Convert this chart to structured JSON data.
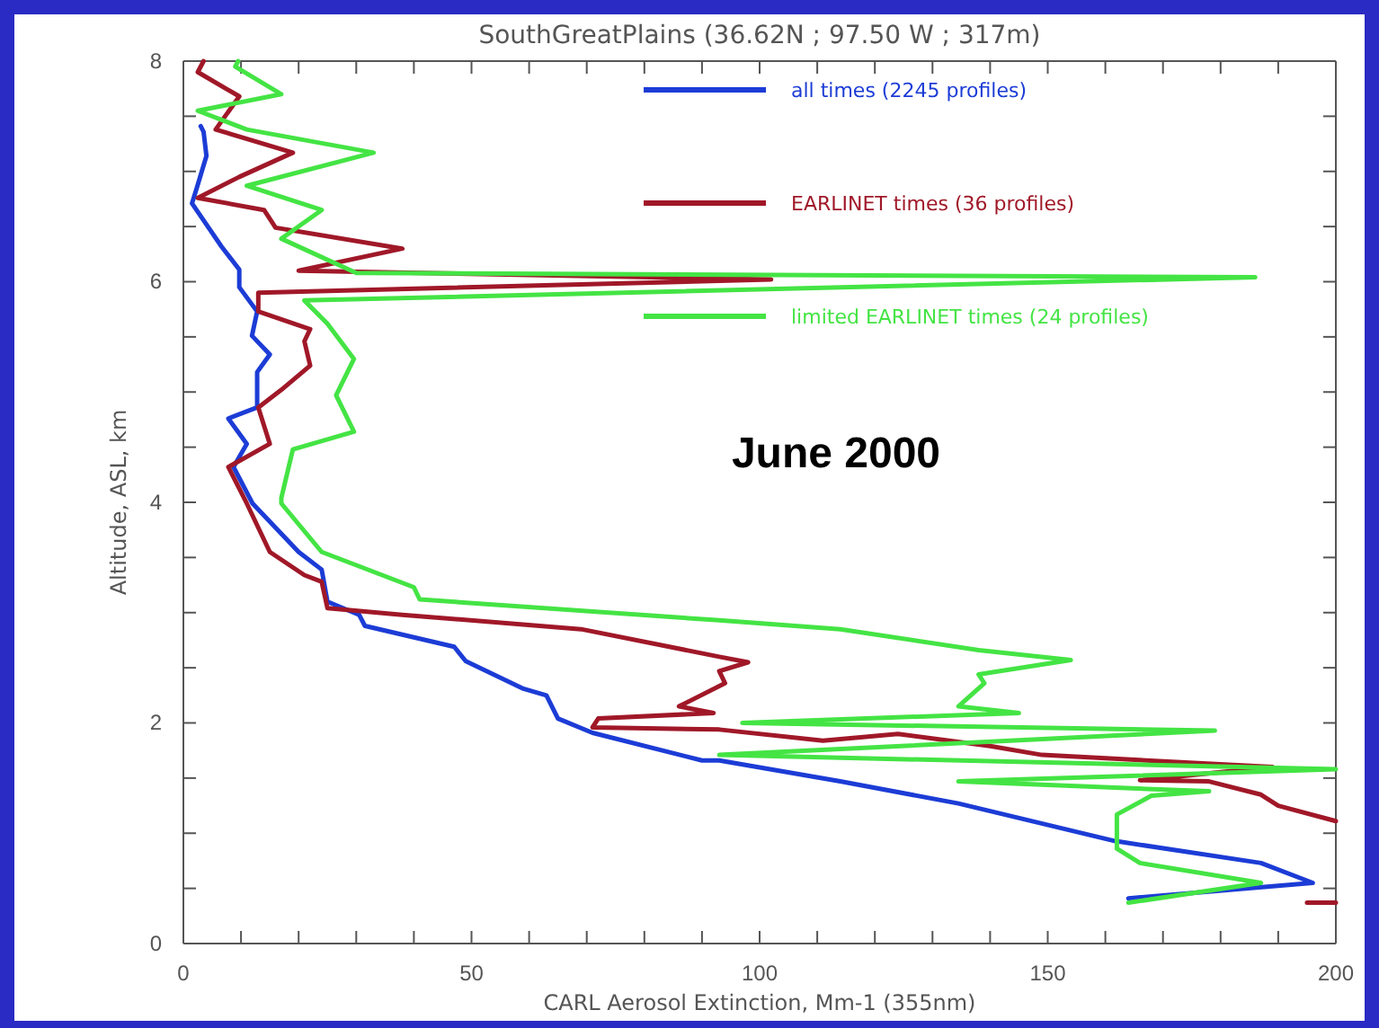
{
  "chart_data": {
    "type": "line",
    "title": "SouthGreatPlains (36.62N ; 97.50 W ; 317m)",
    "xlabel": "CARL Aerosol Extinction, Mm-1 (355nm)",
    "ylabel": "Altitude, ASL, km",
    "xlim": [
      0,
      200
    ],
    "ylim": [
      0,
      8
    ],
    "xticks": [
      0,
      {
        "value": 10,
        "label": null
      },
      {
        "value": 20,
        "label": null
      },
      {
        "value": 30,
        "label": null
      },
      {
        "value": 40,
        "label": null
      },
      50,
      {
        "value": 60,
        "label": null
      },
      {
        "value": 70,
        "label": null
      },
      {
        "value": 80,
        "label": null
      },
      {
        "value": 90,
        "label": null
      },
      100,
      {
        "value": 110,
        "label": null
      },
      {
        "value": 120,
        "label": null
      },
      {
        "value": 130,
        "label": null
      },
      {
        "value": 140,
        "label": null
      },
      150,
      {
        "value": 160,
        "label": null
      },
      {
        "value": 170,
        "label": null
      },
      {
        "value": 180,
        "label": null
      },
      {
        "value": 190,
        "label": null
      },
      200
    ],
    "yticks": [
      0,
      {
        "value": 0.5,
        "label": null
      },
      {
        "value": 1,
        "label": null
      },
      {
        "value": 1.5,
        "label": null
      },
      2,
      {
        "value": 2.5,
        "label": null
      },
      {
        "value": 3,
        "label": null
      },
      {
        "value": 3.5,
        "label": null
      },
      4,
      {
        "value": 4.5,
        "label": null
      },
      {
        "value": 5,
        "label": null
      },
      {
        "value": 5.5,
        "label": null
      },
      6,
      {
        "value": 6.5,
        "label": null
      },
      {
        "value": 7,
        "label": null
      },
      {
        "value": 7.5,
        "label": null
      },
      8
    ],
    "grid": false,
    "legend": "top right",
    "line_style": "solid",
    "marker": "none",
    "annotations": [
      "June 2000"
    ],
    "series": [
      {
        "name": "all times (2245 profiles)",
        "color": "#1c3cd6",
        "x": [
          164,
          196,
          187,
          161.6,
          134.5,
          114,
          93,
          90,
          71,
          65,
          63,
          59,
          49,
          47,
          31.5,
          30.5,
          25,
          24,
          20,
          12,
          8.7,
          11,
          7.8,
          12.8,
          12.8,
          15,
          11.9,
          12.8,
          9.7,
          9.7,
          6.6,
          1.5,
          2.5,
          4,
          3.5,
          3
        ],
        "values": [
          0.41,
          0.55,
          0.73,
          0.93,
          1.27,
          1.47,
          1.66,
          1.66,
          1.91,
          2.04,
          2.25,
          2.31,
          2.56,
          2.69,
          2.88,
          2.98,
          3.1,
          3.39,
          3.55,
          3.99,
          4.32,
          4.53,
          4.76,
          4.86,
          5.18,
          5.34,
          5.51,
          5.73,
          5.95,
          6.11,
          6.32,
          6.71,
          6.88,
          7.14,
          7.36,
          7.41
        ]
      },
      {
        "name": "EARLINET times (36 profiles)",
        "color": "#a01828",
        "x": [
          195,
          200,
          null,
          200,
          190,
          187,
          178,
          166,
          189,
          149,
          140,
          124,
          111,
          93,
          71,
          72,
          92,
          86,
          94,
          93,
          98,
          93,
          69,
          38,
          25,
          24,
          21,
          15,
          11,
          7.8,
          15,
          13,
          17,
          22,
          21,
          22,
          13,
          13,
          102,
          20,
          38,
          16,
          14,
          2.5,
          9.7,
          19,
          5.6,
          9.7,
          2.5,
          3.5
        ],
        "values": [
          0.37,
          0.37,
          null,
          1.11,
          1.25,
          1.35,
          1.47,
          1.48,
          1.6,
          1.71,
          1.79,
          1.9,
          1.84,
          1.94,
          1.96,
          2.04,
          2.09,
          2.15,
          2.36,
          2.47,
          2.55,
          2.6,
          2.85,
          2.98,
          3.04,
          3.28,
          3.34,
          3.55,
          3.99,
          4.32,
          4.53,
          4.86,
          5.02,
          5.24,
          5.46,
          5.57,
          5.73,
          5.9,
          6.02,
          6.1,
          6.3,
          6.49,
          6.65,
          6.76,
          6.95,
          7.17,
          7.38,
          7.68,
          7.9,
          8
        ]
      },
      {
        "name": "limited EARLINET times (24 profiles)",
        "color": "#44e444",
        "x": [
          164,
          187,
          166,
          162,
          162,
          168,
          178,
          134.5,
          200,
          93,
          179,
          97,
          145,
          134.5,
          139,
          138,
          154,
          138,
          114,
          93,
          41,
          40,
          24,
          17,
          17,
          19,
          29.6,
          26.5,
          29.6,
          25,
          21,
          186,
          30,
          17,
          24,
          11,
          33,
          11,
          2.5,
          17,
          9,
          9.5
        ],
        "values": [
          0.37,
          0.55,
          0.73,
          0.86,
          1.17,
          1.34,
          1.38,
          1.47,
          1.58,
          1.71,
          1.93,
          2.0,
          2.09,
          2.15,
          2.36,
          2.44,
          2.57,
          2.66,
          2.85,
          2.93,
          3.12,
          3.23,
          3.55,
          3.99,
          4.04,
          4.48,
          4.64,
          4.97,
          5.3,
          5.62,
          5.83,
          6.04,
          6.08,
          6.39,
          6.65,
          6.87,
          7.17,
          7.38,
          7.55,
          7.7,
          7.95,
          8
        ]
      }
    ]
  }
}
